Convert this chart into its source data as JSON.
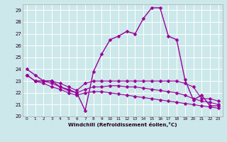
{
  "xlabel": "Windchill (Refroidissement éolien,°C)",
  "hours": [
    0,
    1,
    2,
    3,
    4,
    5,
    6,
    7,
    8,
    9,
    10,
    11,
    12,
    13,
    14,
    15,
    16,
    17,
    18,
    19,
    20,
    21,
    22,
    23
  ],
  "curve_main": [
    24.0,
    23.5,
    23.0,
    23.0,
    22.5,
    22.2,
    22.0,
    20.5,
    23.8,
    25.3,
    26.5,
    26.8,
    27.2,
    27.0,
    28.3,
    29.2,
    29.2,
    26.8,
    26.5,
    23.1,
    21.4,
    21.8,
    20.9,
    20.9
  ],
  "curve_flat1": [
    23.5,
    23.0,
    23.0,
    23.0,
    22.8,
    22.5,
    22.2,
    22.8,
    23.0,
    23.0,
    23.0,
    23.0,
    23.0,
    23.0,
    23.0,
    23.0,
    23.0,
    23.0,
    23.0,
    22.8,
    22.5,
    21.5,
    21.5,
    21.3
  ],
  "curve_flat2": [
    23.5,
    23.0,
    23.0,
    22.8,
    22.5,
    22.3,
    22.0,
    22.3,
    22.5,
    22.5,
    22.6,
    22.6,
    22.5,
    22.5,
    22.4,
    22.3,
    22.2,
    22.1,
    22.0,
    21.8,
    21.5,
    21.3,
    21.2,
    21.0
  ],
  "curve_flat3": [
    23.5,
    23.0,
    22.8,
    22.5,
    22.3,
    22.0,
    21.8,
    22.0,
    22.1,
    22.1,
    22.0,
    21.9,
    21.8,
    21.7,
    21.6,
    21.5,
    21.4,
    21.3,
    21.2,
    21.1,
    21.0,
    20.9,
    20.8,
    20.7
  ],
  "ylim": [
    20,
    29.5
  ],
  "yticks": [
    20,
    21,
    22,
    23,
    24,
    25,
    26,
    27,
    28,
    29
  ],
  "color": "#990099",
  "bg_color": "#cce8ea",
  "grid_color": "#ffffff",
  "markersize": 2.5
}
